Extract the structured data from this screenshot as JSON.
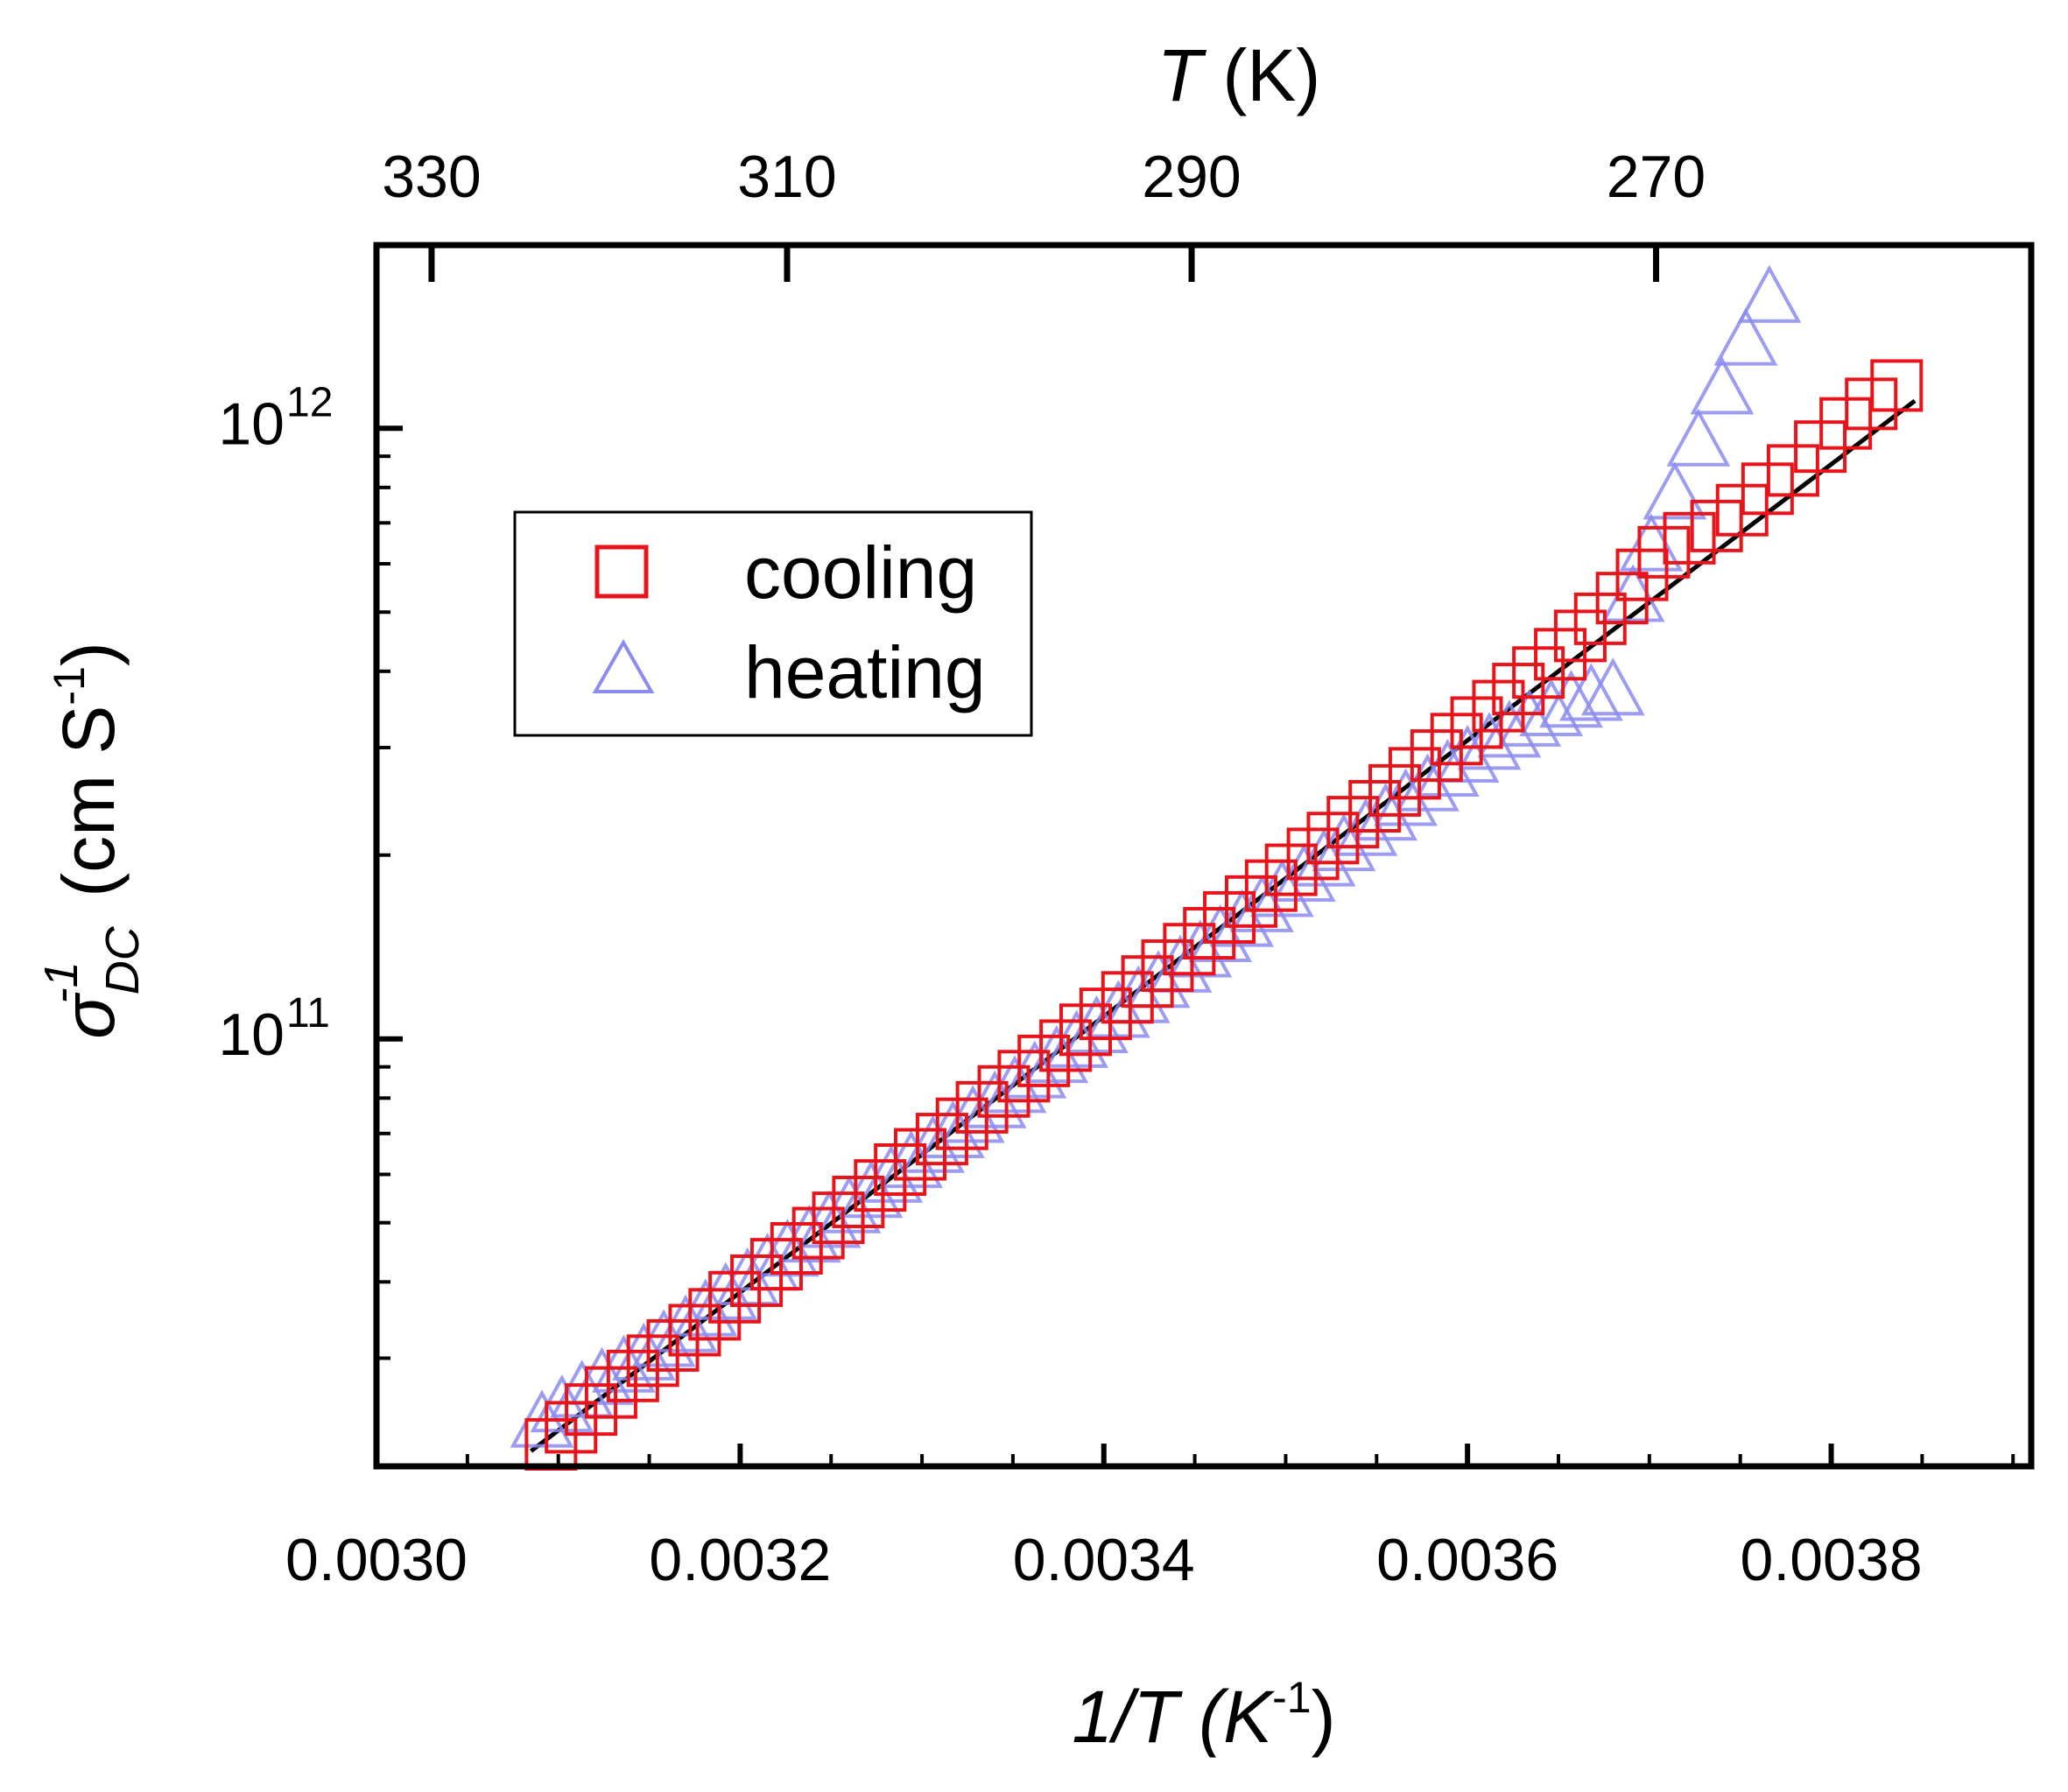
{
  "colors": {
    "cooling": "#e8141b",
    "heating": "#8b8bf0",
    "fit": "#000000",
    "frame": "#000000"
  },
  "chart_data": {
    "type": "scatter",
    "xlabel": "1/T  (K",
    "xlabel_sup": "-1",
    "xlabel_close": ")",
    "ylabel": "σ",
    "ylabel_sup": "-1",
    "ylabel_sub": "DC",
    "ylabel_units": " (cm S",
    "ylabel_units_sup": "-1",
    "ylabel_units_close": ")",
    "top_xlabel": "T",
    "top_xlabel_units": " (K)",
    "xlim": [
      0.003,
      0.00391
    ],
    "ylim_log10": [
      10.3,
      12.3
    ],
    "x_ticks": [
      0.003,
      0.0032,
      0.0034,
      0.0036,
      0.0038
    ],
    "x_tick_labels": [
      "0.0030",
      "0.0032",
      "0.0034",
      "0.0036",
      "0.0038"
    ],
    "y_ticks": [
      {
        "base": "10",
        "exp": "11",
        "value_log10": 11
      },
      {
        "base": "10",
        "exp": "12",
        "value_log10": 12
      }
    ],
    "top_ticks": [
      {
        "T": 330,
        "label": "330"
      },
      {
        "T": 310,
        "label": "310"
      },
      {
        "T": 290,
        "label": "290"
      },
      {
        "T": 270,
        "label": "270"
      }
    ],
    "legend": {
      "position": "upper-left",
      "entries": [
        {
          "name": "cooling",
          "marker": "square"
        },
        {
          "name": "heating",
          "marker": "triangle"
        }
      ]
    },
    "series": [
      {
        "name": "cooling",
        "marker": "square",
        "x": [
          0.003096,
          0.003107,
          0.003118,
          0.003129,
          0.003141,
          0.003152,
          0.003163,
          0.003175,
          0.003186,
          0.003197,
          0.003209,
          0.00322,
          0.003231,
          0.003243,
          0.003254,
          0.003265,
          0.003277,
          0.003288,
          0.003299,
          0.003311,
          0.003322,
          0.003333,
          0.003345,
          0.003356,
          0.003367,
          0.003379,
          0.00339,
          0.003401,
          0.003413,
          0.003424,
          0.003435,
          0.003447,
          0.003458,
          0.003469,
          0.003481,
          0.003492,
          0.003503,
          0.003515,
          0.003526,
          0.003537,
          0.003549,
          0.00356,
          0.003571,
          0.003583,
          0.003594,
          0.003605,
          0.003617,
          0.003628,
          0.003639,
          0.003651,
          0.003662,
          0.003673,
          0.003685,
          0.003696,
          0.003708,
          0.003722,
          0.003737,
          0.003751,
          0.003765,
          0.003779,
          0.003794,
          0.003808,
          0.003822,
          0.003836
        ],
        "log10_y": [
          10.336,
          10.364,
          10.393,
          10.421,
          10.448,
          10.473,
          10.498,
          10.523,
          10.549,
          10.577,
          10.604,
          10.631,
          10.657,
          10.682,
          10.707,
          10.733,
          10.76,
          10.786,
          10.811,
          10.836,
          10.861,
          10.888,
          10.914,
          10.939,
          10.964,
          10.989,
          11.015,
          11.041,
          11.068,
          11.094,
          11.12,
          11.147,
          11.173,
          11.199,
          11.225,
          11.251,
          11.277,
          11.303,
          11.329,
          11.355,
          11.381,
          11.407,
          11.435,
          11.464,
          11.491,
          11.518,
          11.545,
          11.573,
          11.6,
          11.63,
          11.66,
          11.688,
          11.722,
          11.76,
          11.797,
          11.82,
          11.84,
          11.866,
          11.901,
          11.931,
          11.97,
          12.008,
          12.04,
          12.07
        ]
      },
      {
        "name": "heating",
        "marker": "triangle",
        "x": [
          0.003091,
          0.003102,
          0.003113,
          0.003124,
          0.003136,
          0.003147,
          0.003158,
          0.00317,
          0.003181,
          0.003192,
          0.003204,
          0.003215,
          0.003226,
          0.003238,
          0.003249,
          0.00326,
          0.003272,
          0.003283,
          0.003294,
          0.003306,
          0.003317,
          0.003328,
          0.00334,
          0.003351,
          0.003362,
          0.003374,
          0.003385,
          0.003396,
          0.003408,
          0.003419,
          0.00343,
          0.003442,
          0.003453,
          0.003464,
          0.003476,
          0.003487,
          0.003498,
          0.00351,
          0.003521,
          0.003532,
          0.003544,
          0.003555,
          0.003566,
          0.003578,
          0.003589,
          0.0036,
          0.003612,
          0.003623,
          0.003634,
          0.003646,
          0.003657,
          0.003668,
          0.00368,
          0.003691,
          0.003701,
          0.003714,
          0.003727,
          0.00374,
          0.003753,
          0.003766
        ],
        "log10_y": [
          10.368,
          10.393,
          10.417,
          10.438,
          10.458,
          10.478,
          10.5,
          10.524,
          10.55,
          10.577,
          10.601,
          10.625,
          10.648,
          10.671,
          10.695,
          10.719,
          10.744,
          10.769,
          10.793,
          10.818,
          10.842,
          10.867,
          10.891,
          10.916,
          10.94,
          10.965,
          10.99,
          11.014,
          11.039,
          11.063,
          11.088,
          11.113,
          11.138,
          11.163,
          11.188,
          11.212,
          11.237,
          11.262,
          11.287,
          11.312,
          11.337,
          11.362,
          11.386,
          11.41,
          11.434,
          11.457,
          11.478,
          11.498,
          11.516,
          11.533,
          11.547,
          11.558,
          11.567,
          11.72,
          11.803,
          11.888,
          11.975,
          12.06,
          12.14,
          12.21
        ]
      },
      {
        "name": "fit",
        "type": "line",
        "x": [
          0.003085,
          0.003846
        ],
        "log10_y": [
          10.325,
          12.045
        ]
      }
    ]
  }
}
